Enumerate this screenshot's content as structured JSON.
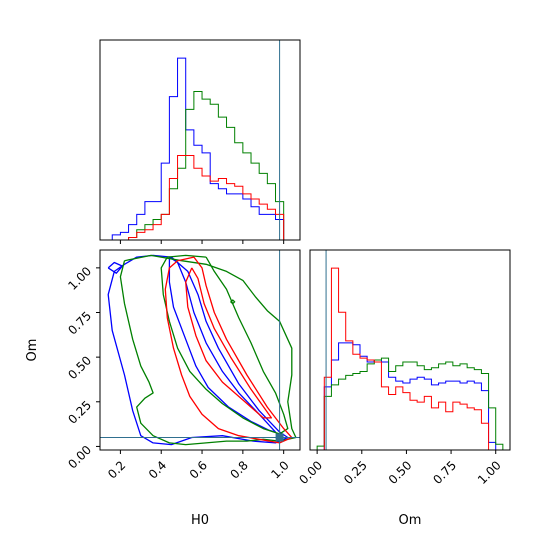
{
  "chart_data": [
    {
      "type": "histogram",
      "panel": "H0 marginal",
      "x_variable": "H0",
      "xlim": [
        0.1,
        1.08
      ],
      "truth_line": 0.98,
      "bin_edges": [
        0.12,
        0.16,
        0.2,
        0.24,
        0.28,
        0.32,
        0.36,
        0.4,
        0.44,
        0.48,
        0.52,
        0.56,
        0.6,
        0.64,
        0.68,
        0.72,
        0.76,
        0.8,
        0.84,
        0.88,
        0.92,
        0.96,
        1.0,
        1.04
      ],
      "series": [
        {
          "color": "#0000ff",
          "values": [
            0,
            2,
            3,
            6,
            10,
            15,
            15,
            30,
            56,
            71,
            43,
            37,
            34,
            22,
            20,
            18,
            18,
            16,
            13,
            10,
            10,
            8,
            0
          ]
        },
        {
          "color": "#008000",
          "values": [
            0,
            0,
            0,
            1,
            4,
            6,
            8,
            10,
            20,
            28,
            51,
            58,
            55,
            53,
            48,
            44,
            38,
            34,
            30,
            26,
            22,
            15,
            0
          ]
        },
        {
          "color": "#ff0000",
          "values": [
            0,
            0,
            0,
            1,
            3,
            4,
            6,
            10,
            24,
            33,
            33,
            28,
            25,
            23,
            24,
            22,
            21,
            18,
            16,
            14,
            12,
            10,
            0
          ]
        }
      ]
    },
    {
      "type": "contour",
      "panel": "H0 vs Om joint",
      "xlabel": "H0",
      "ylabel": "Om",
      "xlim": [
        0.1,
        1.08
      ],
      "ylim": [
        -0.02,
        1.1
      ],
      "x_ticks": [
        "0.2",
        "0.4",
        "0.6",
        "0.8",
        "1.0"
      ],
      "y_ticks": [
        "0.00",
        "0.25",
        "0.50",
        "0.75",
        "1.00"
      ],
      "truth_point": [
        0.98,
        0.05
      ],
      "series": [
        {
          "color": "#0000ff",
          "contours": [
            [
              [
                0.22,
                1.02
              ],
              [
                0.28,
                1.06
              ],
              [
                0.36,
                1.07
              ],
              [
                0.45,
                1.06
              ],
              [
                0.53,
                0.98
              ],
              [
                0.58,
                0.85
              ],
              [
                0.62,
                0.7
              ],
              [
                0.68,
                0.55
              ],
              [
                0.78,
                0.35
              ],
              [
                0.88,
                0.2
              ],
              [
                0.98,
                0.08
              ],
              [
                1.02,
                0.05
              ],
              [
                0.96,
                0.02
              ],
              [
                0.85,
                0.03
              ],
              [
                0.7,
                0.06
              ],
              [
                0.55,
                0.05
              ],
              [
                0.45,
                0.01
              ],
              [
                0.36,
                0.02
              ],
              [
                0.3,
                0.06
              ],
              [
                0.26,
                0.2
              ],
              [
                0.22,
                0.4
              ],
              [
                0.16,
                0.65
              ],
              [
                0.14,
                0.85
              ],
              [
                0.17,
                0.98
              ],
              [
                0.22,
                1.02
              ]
            ],
            [
              [
                0.44,
                1.06
              ],
              [
                0.48,
                1.03
              ],
              [
                0.52,
                0.92
              ],
              [
                0.56,
                0.75
              ],
              [
                0.62,
                0.58
              ],
              [
                0.7,
                0.42
              ],
              [
                0.78,
                0.3
              ],
              [
                0.88,
                0.18
              ],
              [
                0.96,
                0.08
              ],
              [
                0.93,
                0.09
              ],
              [
                0.84,
                0.14
              ],
              [
                0.73,
                0.22
              ],
              [
                0.63,
                0.33
              ],
              [
                0.57,
                0.45
              ],
              [
                0.52,
                0.6
              ],
              [
                0.46,
                0.78
              ],
              [
                0.44,
                0.92
              ],
              [
                0.44,
                1.06
              ]
            ],
            [
              [
                0.14,
                1.0
              ],
              [
                0.17,
                1.03
              ],
              [
                0.21,
                1.01
              ],
              [
                0.18,
                0.97
              ],
              [
                0.14,
                1.0
              ]
            ]
          ]
        },
        {
          "color": "#008000",
          "contours": [
            [
              [
                0.22,
                1.04
              ],
              [
                0.35,
                1.07
              ],
              [
                0.5,
                1.04
              ],
              [
                0.62,
                1.02
              ],
              [
                0.72,
                0.98
              ],
              [
                0.8,
                0.93
              ],
              [
                0.86,
                0.84
              ],
              [
                0.92,
                0.76
              ],
              [
                0.98,
                0.7
              ],
              [
                1.04,
                0.55
              ],
              [
                1.04,
                0.4
              ],
              [
                1.02,
                0.25
              ],
              [
                1.04,
                0.1
              ],
              [
                1.06,
                0.05
              ],
              [
                0.98,
                0.03
              ],
              [
                0.9,
                0.04
              ],
              [
                0.82,
                0.03
              ],
              [
                0.72,
                0.03
              ],
              [
                0.62,
                0.02
              ],
              [
                0.52,
                0.01
              ],
              [
                0.44,
                0.02
              ],
              [
                0.36,
                0.06
              ],
              [
                0.3,
                0.13
              ],
              [
                0.28,
                0.22
              ],
              [
                0.32,
                0.27
              ],
              [
                0.36,
                0.3
              ],
              [
                0.34,
                0.36
              ],
              [
                0.3,
                0.45
              ],
              [
                0.26,
                0.6
              ],
              [
                0.22,
                0.8
              ],
              [
                0.2,
                0.95
              ],
              [
                0.22,
                1.04
              ]
            ],
            [
              [
                0.62,
                1.06
              ],
              [
                0.66,
                0.98
              ],
              [
                0.72,
                0.88
              ],
              [
                0.78,
                0.72
              ],
              [
                0.84,
                0.58
              ],
              [
                0.9,
                0.42
              ],
              [
                0.96,
                0.3
              ],
              [
                1.0,
                0.18
              ],
              [
                1.02,
                0.1
              ],
              [
                0.98,
                0.07
              ],
              [
                0.9,
                0.1
              ],
              [
                0.8,
                0.16
              ],
              [
                0.7,
                0.24
              ],
              [
                0.62,
                0.32
              ],
              [
                0.54,
                0.42
              ],
              [
                0.48,
                0.55
              ],
              [
                0.44,
                0.7
              ],
              [
                0.41,
                0.85
              ],
              [
                0.4,
                1.0
              ],
              [
                0.43,
                1.06
              ],
              [
                0.52,
                1.07
              ],
              [
                0.62,
                1.06
              ]
            ],
            [
              [
                0.74,
                0.81
              ],
              [
                0.75,
                0.82
              ],
              [
                0.76,
                0.81
              ],
              [
                0.75,
                0.8
              ],
              [
                0.74,
                0.81
              ]
            ]
          ]
        },
        {
          "color": "#ff0000",
          "contours": [
            [
              [
                0.48,
                1.04
              ],
              [
                0.56,
                1.06
              ],
              [
                0.6,
                1.0
              ],
              [
                0.62,
                0.9
              ],
              [
                0.66,
                0.75
              ],
              [
                0.72,
                0.6
              ],
              [
                0.82,
                0.4
              ],
              [
                0.92,
                0.22
              ],
              [
                1.0,
                0.1
              ],
              [
                1.04,
                0.05
              ],
              [
                0.98,
                0.02
              ],
              [
                0.88,
                0.04
              ],
              [
                0.78,
                0.06
              ],
              [
                0.68,
                0.1
              ],
              [
                0.6,
                0.18
              ],
              [
                0.54,
                0.28
              ],
              [
                0.5,
                0.4
              ],
              [
                0.46,
                0.55
              ],
              [
                0.43,
                0.72
              ],
              [
                0.42,
                0.88
              ],
              [
                0.44,
                1.0
              ],
              [
                0.48,
                1.04
              ]
            ],
            [
              [
                0.55,
                1.0
              ],
              [
                0.58,
                0.94
              ],
              [
                0.61,
                0.8
              ],
              [
                0.66,
                0.66
              ],
              [
                0.74,
                0.5
              ],
              [
                0.84,
                0.32
              ],
              [
                0.94,
                0.16
              ],
              [
                0.9,
                0.16
              ],
              [
                0.8,
                0.26
              ],
              [
                0.7,
                0.36
              ],
              [
                0.62,
                0.48
              ],
              [
                0.57,
                0.62
              ],
              [
                0.53,
                0.78
              ],
              [
                0.52,
                0.92
              ],
              [
                0.55,
                1.0
              ]
            ]
          ]
        }
      ]
    },
    {
      "type": "histogram",
      "panel": "Om marginal",
      "xlabel": "Om",
      "x_variable": "Om",
      "xlim": [
        -0.04,
        1.08
      ],
      "x_ticks": [
        "0.00",
        "0.25",
        "0.50",
        "0.75",
        "1.00"
      ],
      "truth_line": 0.05,
      "bin_edges": [
        0.0,
        0.04,
        0.08,
        0.12,
        0.16,
        0.2,
        0.24,
        0.28,
        0.32,
        0.36,
        0.4,
        0.44,
        0.48,
        0.52,
        0.56,
        0.6,
        0.64,
        0.68,
        0.72,
        0.76,
        0.8,
        0.84,
        0.88,
        0.92,
        0.96,
        1.0,
        1.04
      ],
      "series": [
        {
          "color": "#0000ff",
          "values": [
            0,
            33,
            47,
            56,
            56,
            55,
            49,
            46,
            47,
            46,
            38,
            36,
            35,
            37,
            38,
            37,
            34,
            35,
            36,
            36,
            35,
            36,
            35,
            31,
            4,
            0
          ]
        },
        {
          "color": "#008000",
          "values": [
            2,
            28,
            34,
            37,
            39,
            40,
            41,
            45,
            47,
            48,
            41,
            44,
            46,
            46,
            44,
            42,
            43,
            45,
            46,
            44,
            45,
            43,
            42,
            40,
            22,
            3
          ]
        },
        {
          "color": "#ff0000",
          "values": [
            0,
            38,
            95,
            72,
            57,
            50,
            48,
            47,
            46,
            33,
            29,
            33,
            30,
            26,
            25,
            28,
            22,
            25,
            20,
            25,
            24,
            22,
            21,
            14,
            0,
            0
          ]
        }
      ]
    }
  ]
}
